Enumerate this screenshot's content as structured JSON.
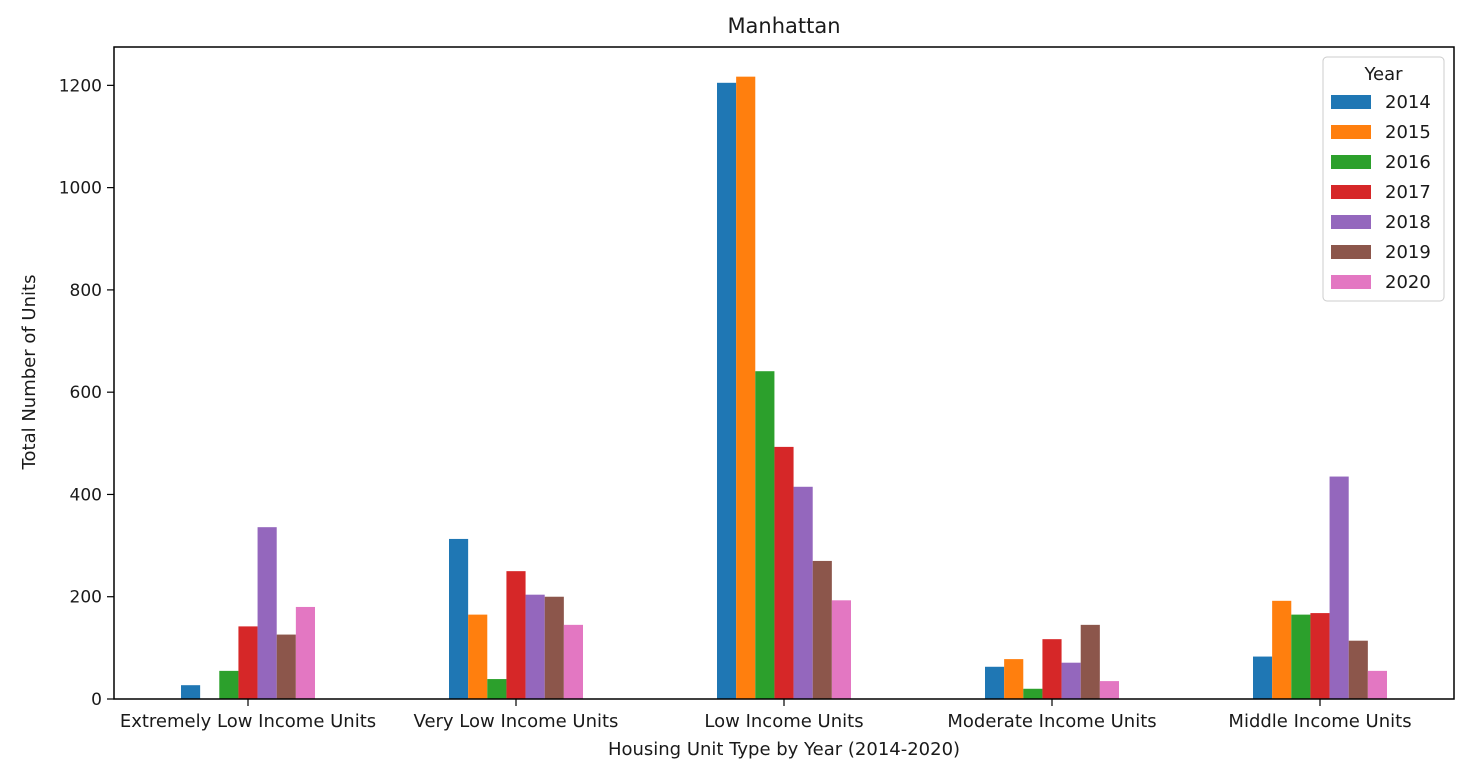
{
  "chart_data": {
    "type": "bar",
    "title": "Manhattan",
    "xlabel": "Housing Unit Type by Year (2014-2020)",
    "ylabel": "Total Number of Units",
    "ylim": [
      0,
      1275
    ],
    "yticks": [
      0,
      200,
      400,
      600,
      800,
      1000,
      1200
    ],
    "grid": false,
    "legend": {
      "title": "Year",
      "position": "top-right"
    },
    "categories": [
      "Extremely Low Income Units",
      "Very Low Income Units",
      "Low Income Units",
      "Moderate Income Units",
      "Middle Income Units"
    ],
    "series": [
      {
        "name": "2014",
        "color": "#1f77b4",
        "values": [
          27,
          313,
          1205,
          63,
          83
        ]
      },
      {
        "name": "2015",
        "color": "#ff7f0e",
        "values": [
          0,
          165,
          1217,
          78,
          192
        ]
      },
      {
        "name": "2016",
        "color": "#2ca02c",
        "values": [
          55,
          39,
          641,
          20,
          165
        ]
      },
      {
        "name": "2017",
        "color": "#d62728",
        "values": [
          142,
          250,
          493,
          117,
          168
        ]
      },
      {
        "name": "2018",
        "color": "#9467bd",
        "values": [
          336,
          204,
          415,
          71,
          435
        ]
      },
      {
        "name": "2019",
        "color": "#8c564b",
        "values": [
          126,
          200,
          270,
          145,
          114
        ]
      },
      {
        "name": "2020",
        "color": "#e377c2",
        "values": [
          180,
          145,
          193,
          35,
          55
        ]
      }
    ]
  }
}
